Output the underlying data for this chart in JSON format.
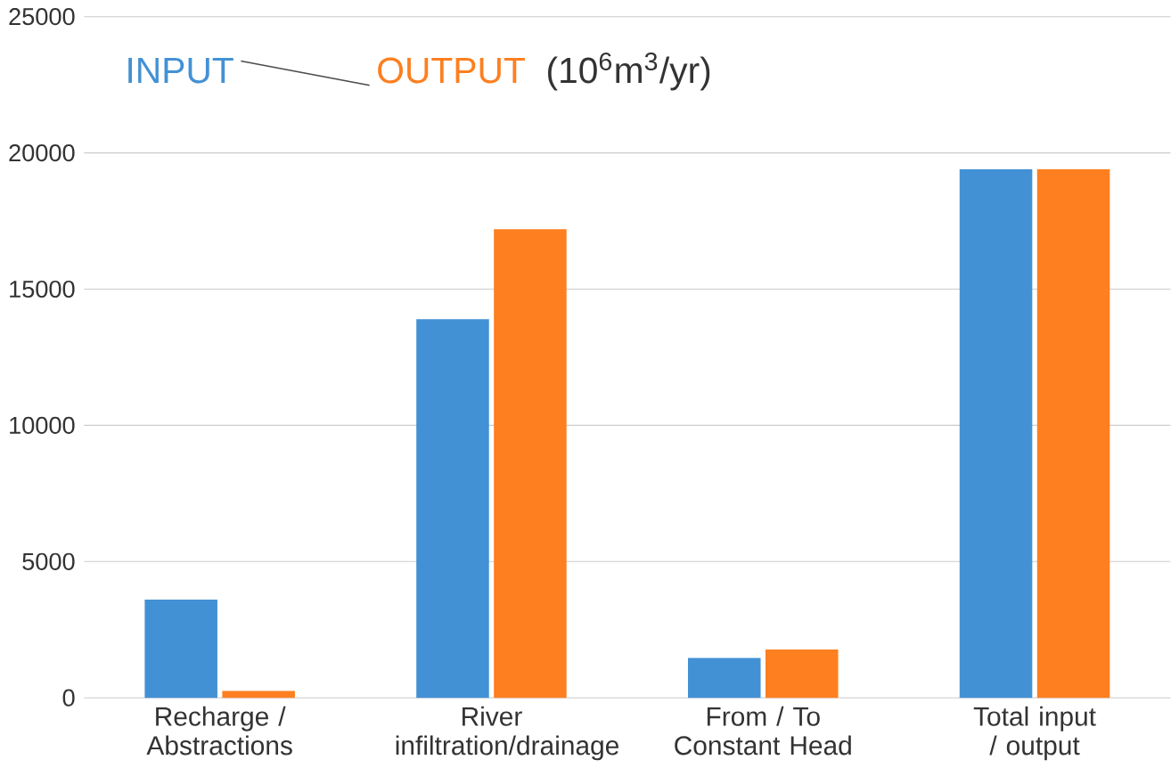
{
  "chart_data": {
    "type": "bar",
    "categories": [
      "Recharge / Abstractions",
      "River infiltration/drainage",
      "From / To Constant Head",
      "Total input / output"
    ],
    "series": [
      {
        "name": "INPUT",
        "color": "#4391d5",
        "values": [
          3600,
          13900,
          1460,
          19400
        ]
      },
      {
        "name": "OUTPUT",
        "color": "#fd7f20",
        "values": [
          250,
          17200,
          1770,
          19400
        ]
      }
    ],
    "ylabel": "(10$^{6}$m$^{3}$/yr)",
    "ylim": [
      0,
      25000
    ],
    "yticks": [
      0,
      5000,
      10000,
      15000,
      20000,
      25000
    ],
    "grid": "y",
    "legend": "top left"
  }
}
